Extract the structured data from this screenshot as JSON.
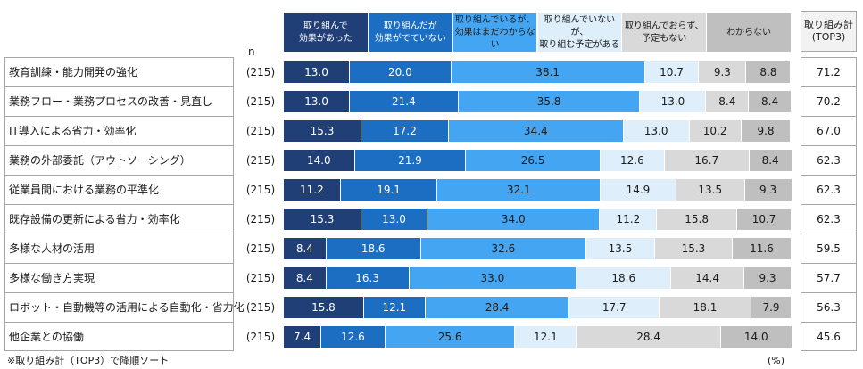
{
  "chart_data": {
    "type": "stacked-bar-horizontal",
    "n_label": "n",
    "total_label": "取り組み計\n(TOP3)",
    "footnote": "※取り組み計（TOP3）で降順ソート",
    "unit": "(%)",
    "xlim": [
      0,
      100
    ],
    "categories": [
      "教育訓練・能力開発の強化",
      "業務フロー・業務プロセスの改善・見直し",
      "IT導入による省力・効率化",
      "業務の外部委託（アウトソーシング）",
      "従業員間における業務の平準化",
      "既存設備の更新による省力・効率化",
      "多様な人材の活用",
      "多様な働き方実現",
      "ロボット・自動機等の活用による自動化・省力化",
      "他企業との協働"
    ],
    "n": [
      "(215)",
      "(215)",
      "(215)",
      "(215)",
      "(215)",
      "(215)",
      "(215)",
      "(215)",
      "(215)",
      "(215)"
    ],
    "series": [
      {
        "name": "取り組んで\n効果があった",
        "color": "#203f76",
        "label_color": "#ffffff",
        "values": [
          13.0,
          13.0,
          15.3,
          14.0,
          11.2,
          15.3,
          8.4,
          8.4,
          15.8,
          7.4
        ],
        "value_labels": [
          "13.0",
          "13.0",
          "15.3",
          "14.0",
          "11.2",
          "15.3",
          "8.4",
          "8.4",
          "15.8",
          "7.4"
        ]
      },
      {
        "name": "取り組んだが\n効果がでていない",
        "color": "#1b6ec2",
        "label_color": "#ffffff",
        "values": [
          20.0,
          21.4,
          17.2,
          21.9,
          19.1,
          13.0,
          18.6,
          16.3,
          12.1,
          12.6
        ],
        "value_labels": [
          "20.0",
          "21.4",
          "17.2",
          "21.9",
          "19.1",
          "13.0",
          "18.6",
          "16.3",
          "12.1",
          "12.6"
        ]
      },
      {
        "name": "取り組んでいるが、\n効果はまだわからない",
        "color": "#44a6f2",
        "label_color": "#1a1a1a",
        "values": [
          38.1,
          35.8,
          34.4,
          26.5,
          32.1,
          34.0,
          32.6,
          33.0,
          28.4,
          25.6
        ],
        "value_labels": [
          "38.1",
          "35.8",
          "34.4",
          "26.5",
          "32.1",
          "34.0",
          "32.6",
          "33.0",
          "28.4",
          "25.6"
        ]
      },
      {
        "name": "取り組んでいないが、\n取り組む予定がある",
        "color": "#deeffb",
        "label_color": "#1a1a1a",
        "values": [
          10.7,
          13.0,
          13.0,
          12.6,
          14.9,
          11.2,
          13.5,
          18.6,
          17.7,
          12.1
        ],
        "value_labels": [
          "10.7",
          "13.0",
          "13.0",
          "12.6",
          "14.9",
          "11.2",
          "13.5",
          "18.6",
          "17.7",
          "12.1"
        ]
      },
      {
        "name": "取り組んでおらず、\n予定もない",
        "color": "#d9d9d9",
        "label_color": "#1a1a1a",
        "values": [
          9.3,
          8.4,
          10.2,
          16.7,
          13.5,
          15.8,
          15.3,
          14.4,
          18.1,
          28.4
        ],
        "value_labels": [
          "9.3",
          "8.4",
          "10.2",
          "16.7",
          "13.5",
          "15.8",
          "15.3",
          "14.4",
          "18.1",
          "28.4"
        ]
      },
      {
        "name": "わからない",
        "color": "#bfbfbf",
        "label_color": "#1a1a1a",
        "values": [
          8.8,
          8.4,
          9.8,
          8.4,
          9.3,
          10.7,
          11.6,
          9.3,
          7.9,
          14.0
        ],
        "value_labels": [
          "8.8",
          "8.4",
          "9.8",
          "8.4",
          "9.3",
          "10.7",
          "11.6",
          "9.3",
          "7.9",
          "14.0"
        ]
      }
    ],
    "top3": [
      71.2,
      70.2,
      67.0,
      62.3,
      62.3,
      62.3,
      59.5,
      57.7,
      56.3,
      45.6
    ],
    "top3_labels": [
      "71.2",
      "70.2",
      "67.0",
      "62.3",
      "62.3",
      "62.3",
      "59.5",
      "57.7",
      "56.3",
      "45.6"
    ]
  }
}
